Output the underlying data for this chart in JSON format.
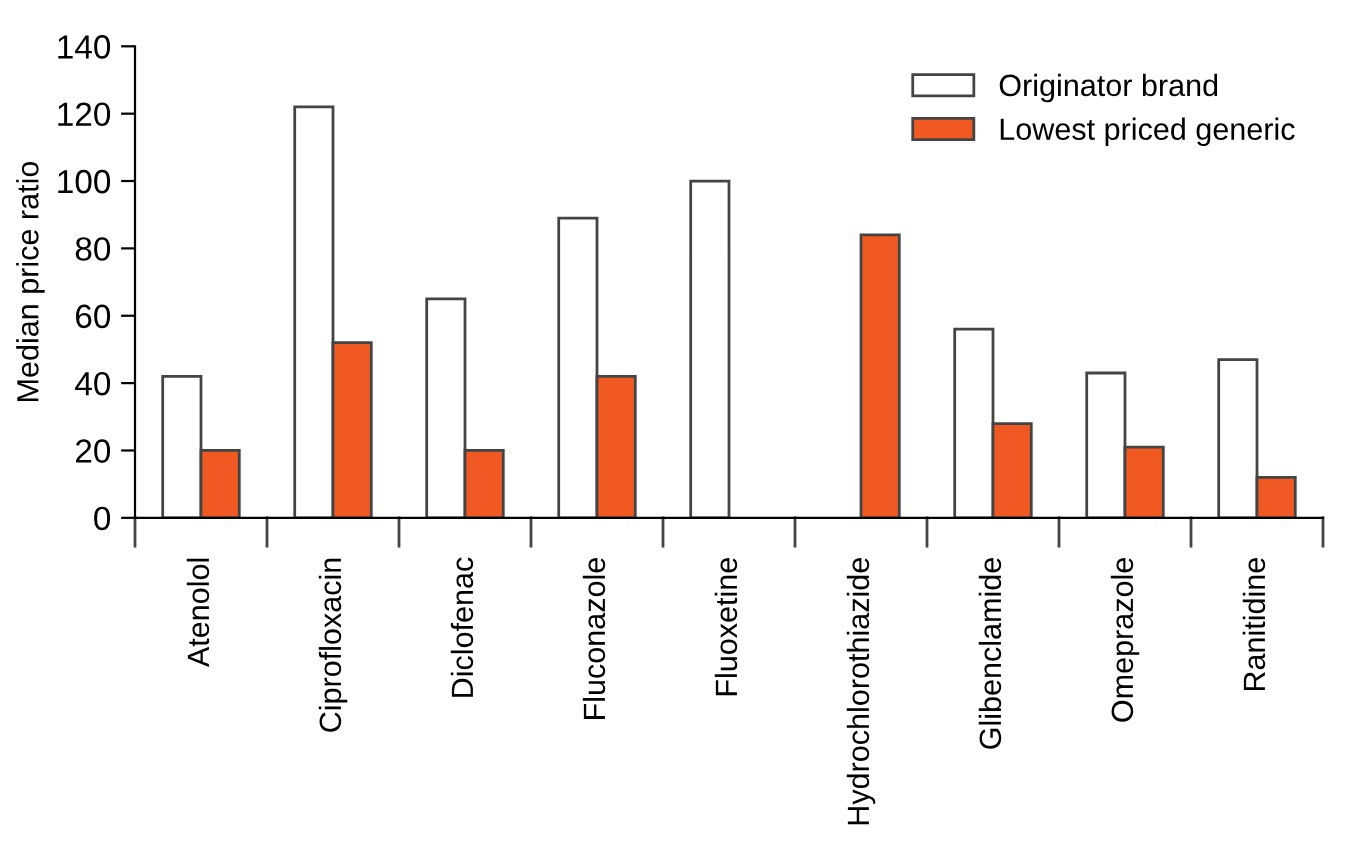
{
  "chart_data": {
    "type": "bar",
    "ylabel": "Median price ratio",
    "categories": [
      "Atenolol",
      "Ciprofloxacin",
      "Diclofenac",
      "Fluconazole",
      "Fluoxetine",
      "Hydrochlorothiazide",
      "Glibenclamide",
      "Omeprazole",
      "Ranitidine"
    ],
    "series": [
      {
        "name": "Originator brand",
        "color": "#ffffff",
        "values": [
          42,
          122,
          65,
          89,
          100,
          null,
          56,
          43,
          47
        ]
      },
      {
        "name": "Lowest priced generic",
        "color": "#f05a22",
        "values": [
          20,
          52,
          20,
          42,
          null,
          84,
          28,
          21,
          12
        ]
      }
    ],
    "ylim": [
      0,
      140
    ],
    "yticks": [
      0,
      20,
      40,
      60,
      80,
      100,
      120,
      140
    ],
    "grid": false,
    "legend": "top right"
  }
}
